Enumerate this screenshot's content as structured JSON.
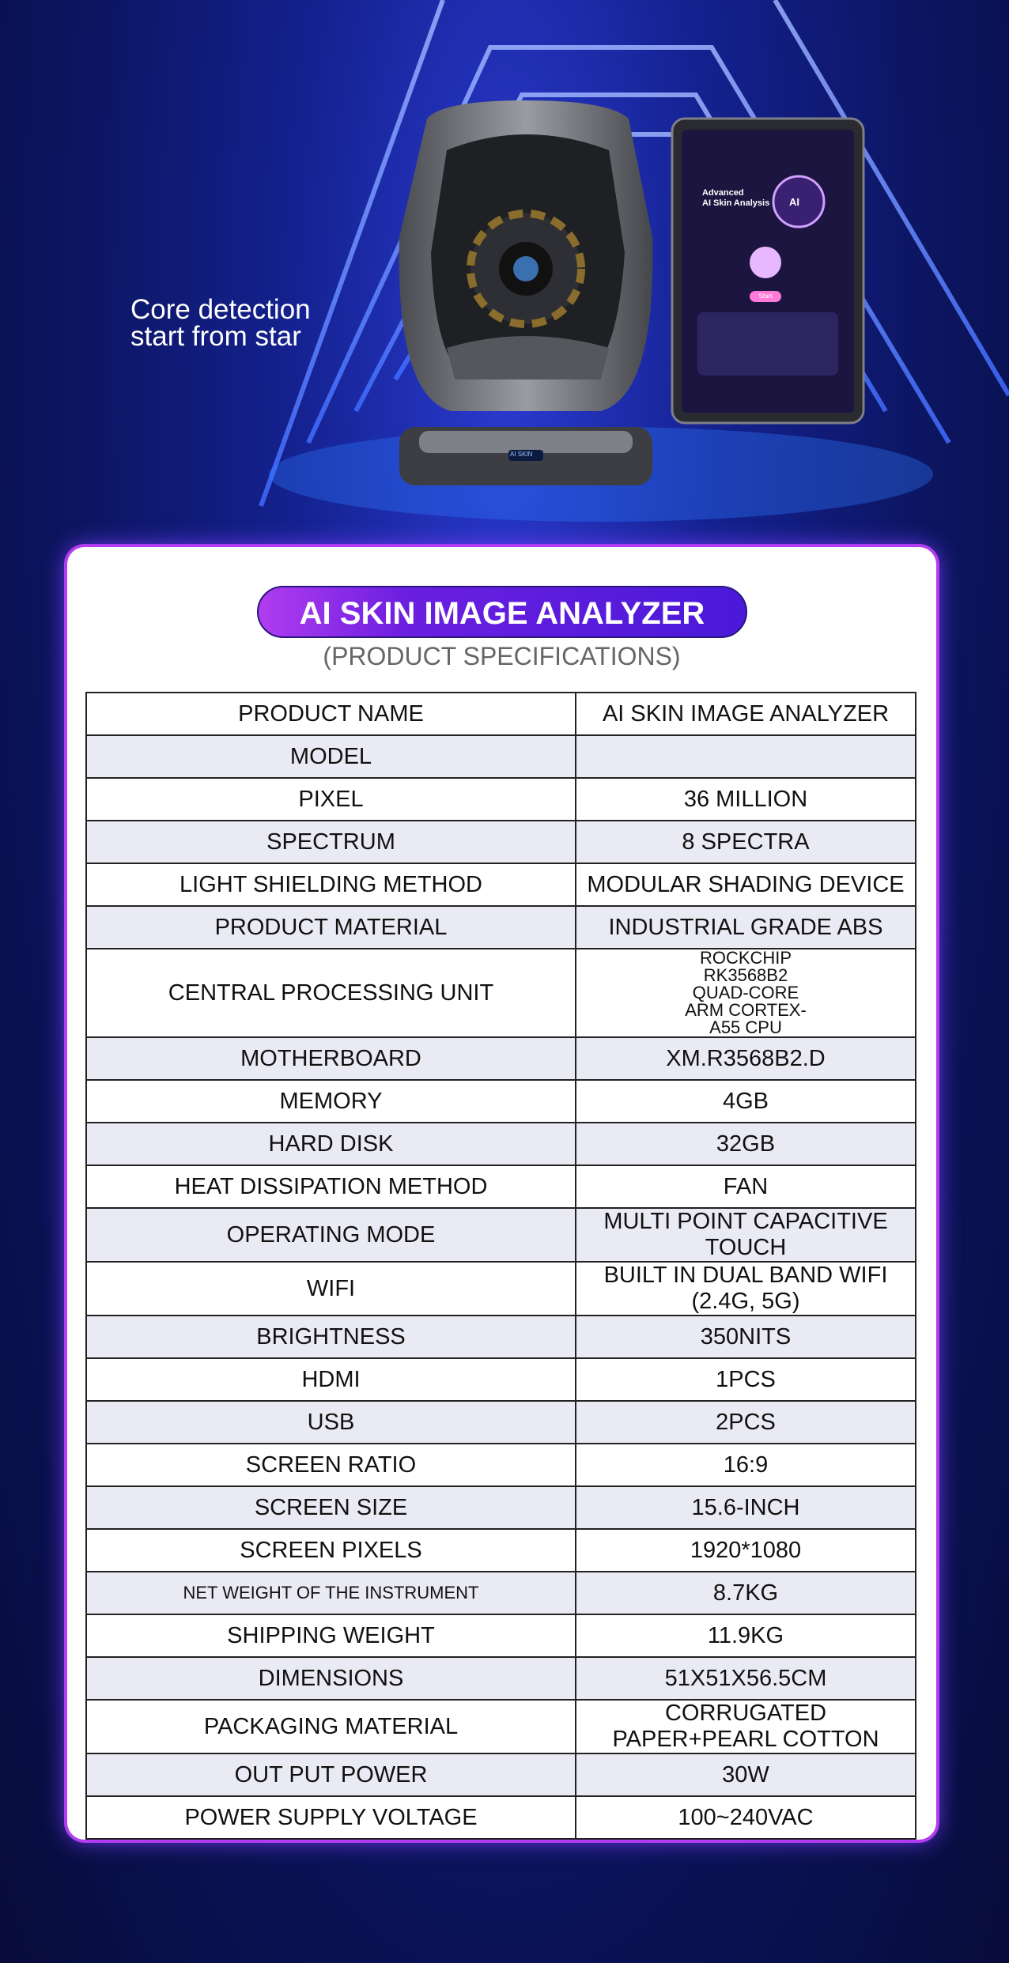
{
  "hero": {
    "tagline": [
      "Core detection",
      "start from star"
    ],
    "device_badge": "AI SKIN",
    "tablet": {
      "heading": [
        "Advanced",
        "AI Skin Analysis"
      ],
      "logo": "AI",
      "button": "Start"
    }
  },
  "header": {
    "title": "AI SKIN IMAGE ANALYZER",
    "subtitle": "(PRODUCT SPECIFICATIONS)"
  },
  "table": {
    "rows": [
      {
        "label": "PRODUCT NAME",
        "value": "AI SKIN IMAGE ANALYZER"
      },
      {
        "label": "MODEL"
      },
      {
        "label": "PIXEL",
        "value": "36 MILLION"
      },
      {
        "label": "SPECTRUM",
        "value": "8 SPECTRA"
      },
      {
        "label": "LIGHT SHIELDING METHOD",
        "value": "MODULAR SHADING DEVICE"
      },
      {
        "label": "PRODUCT MATERIAL",
        "value": "INDUSTRIAL GRADE ABS"
      },
      {
        "label": "CENTRAL PROCESSING UNIT",
        "value": "ROCKCHIP RK3568B2 QUAD-CORE ARM CORTEX-A55 CPU"
      },
      {
        "label": "MOTHERBOARD",
        "value": "XM.R3568B2.D"
      },
      {
        "label": "MEMORY",
        "value": "4GB"
      },
      {
        "label": "HARD DISK",
        "value": "32GB"
      },
      {
        "label": "HEAT DISSIPATION METHOD",
        "value": "FAN"
      },
      {
        "label": "OPERATING MODE",
        "value": "MULTI POINT CAPACITIVE TOUCH"
      },
      {
        "label": "WIFI",
        "value": "BUILT IN DUAL BAND WIFI (2.4G, 5G)"
      },
      {
        "label": "BRIGHTNESS",
        "value": "350NITS"
      },
      {
        "label": "HDMI",
        "value": "1PCS"
      },
      {
        "label": "USB",
        "value": "2PCS"
      },
      {
        "label": "SCREEN RATIO",
        "value": "16:9"
      },
      {
        "label": "SCREEN SIZE",
        "value": "15.6-INCH"
      },
      {
        "label": "SCREEN PIXELS",
        "value": "1920*1080"
      },
      {
        "label": "NET WEIGHT OF THE INSTRUMENT",
        "value": "8.7KG"
      },
      {
        "label": "SHIPPING WEIGHT",
        "value": "11.9KG"
      },
      {
        "label": "DIMENSIONS",
        "value": "51X51X56.5CM"
      },
      {
        "label": "PACKAGING MATERIAL",
        "value": "CORRUGATED PAPER+PEARL COTTON"
      },
      {
        "label": "OUT PUT POWER",
        "value": "30W"
      },
      {
        "label": "POWER SUPPLY VOLTAGE",
        "value": "100~240VAC"
      }
    ]
  }
}
